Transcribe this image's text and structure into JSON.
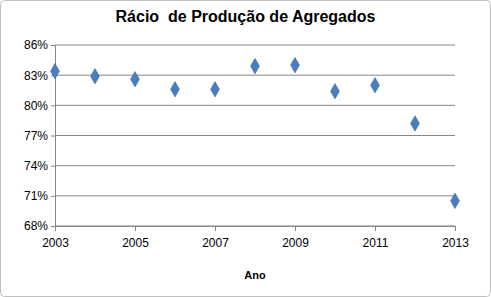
{
  "chart_data": {
    "type": "scatter",
    "title": "Rácio  de Produção de Agregados",
    "x_label": "Ano",
    "x": [
      2003,
      2004,
      2005,
      2006,
      2007,
      2008,
      2009,
      2010,
      2011,
      2012,
      2013
    ],
    "values": [
      83.4,
      82.9,
      82.6,
      81.6,
      81.6,
      83.9,
      84.0,
      81.4,
      82.0,
      78.2,
      70.5
    ],
    "color": "#4a7ebb",
    "marker": "diamond",
    "xlim": [
      2003,
      2013
    ],
    "xticks": [
      2003,
      2005,
      2007,
      2009,
      2011,
      2013
    ],
    "ylim": [
      68,
      86
    ],
    "yticks": [
      {
        "value": 68,
        "label": "68%"
      },
      {
        "value": 71,
        "label": "71%"
      },
      {
        "value": 74,
        "label": "74%"
      },
      {
        "value": 77,
        "label": "77%"
      },
      {
        "value": 80,
        "label": "80%"
      },
      {
        "value": 83,
        "label": "83%"
      },
      {
        "value": 86,
        "label": "86%"
      }
    ],
    "grid": true
  }
}
